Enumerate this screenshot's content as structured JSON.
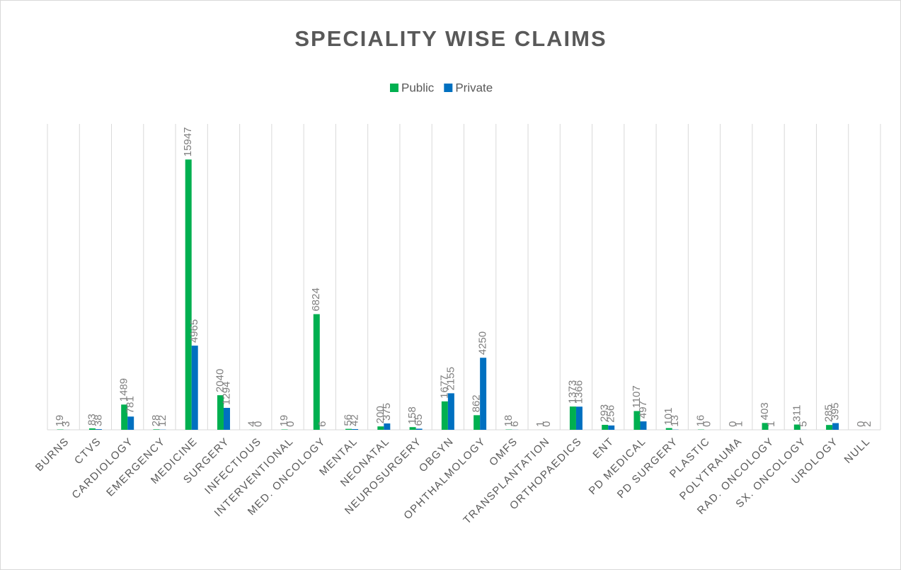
{
  "chart_data": {
    "type": "bar",
    "title": "SPECIALITY WISE CLAIMS",
    "categories": [
      "BURNS",
      "CTVS",
      "CARDIOLOGY",
      "EMERGENCY",
      "MEDICINE",
      "SURGERY",
      "INFECTIOUS",
      "INTERVENTIONAL",
      "MED. ONCOLOGY",
      "MENTAL",
      "NEONATAL",
      "NEUROSURGERY",
      "OBGYN",
      "OPHTHALMOLOGY",
      "OMFS",
      "TRANSPLANTATION",
      "ORTHOPAEDICS",
      "ENT",
      "PD MEDICAL",
      "PD SURGERY",
      "PLASTIC",
      "POLYTRAUMA",
      "RAD. ONCOLOGY",
      "SX. ONCOLOGY",
      "UROLOGY",
      "NULL"
    ],
    "series": [
      {
        "name": "Public",
        "color": "#00b050",
        "values": [
          19,
          83,
          1489,
          28,
          15947,
          2040,
          4,
          19,
          6824,
          56,
          200,
          158,
          1677,
          862,
          18,
          1,
          1373,
          293,
          1107,
          101,
          16,
          0,
          403,
          311,
          285,
          0
        ]
      },
      {
        "name": "Private",
        "color": "#0070c0",
        "values": [
          3,
          38,
          781,
          12,
          4965,
          1294,
          0,
          0,
          6,
          42,
          375,
          65,
          2155,
          4250,
          6,
          0,
          1366,
          256,
          497,
          13,
          0,
          1,
          1,
          5,
          395,
          2
        ]
      }
    ],
    "ylim": [
      0,
      16000
    ],
    "grid": true,
    "legend": "top"
  }
}
